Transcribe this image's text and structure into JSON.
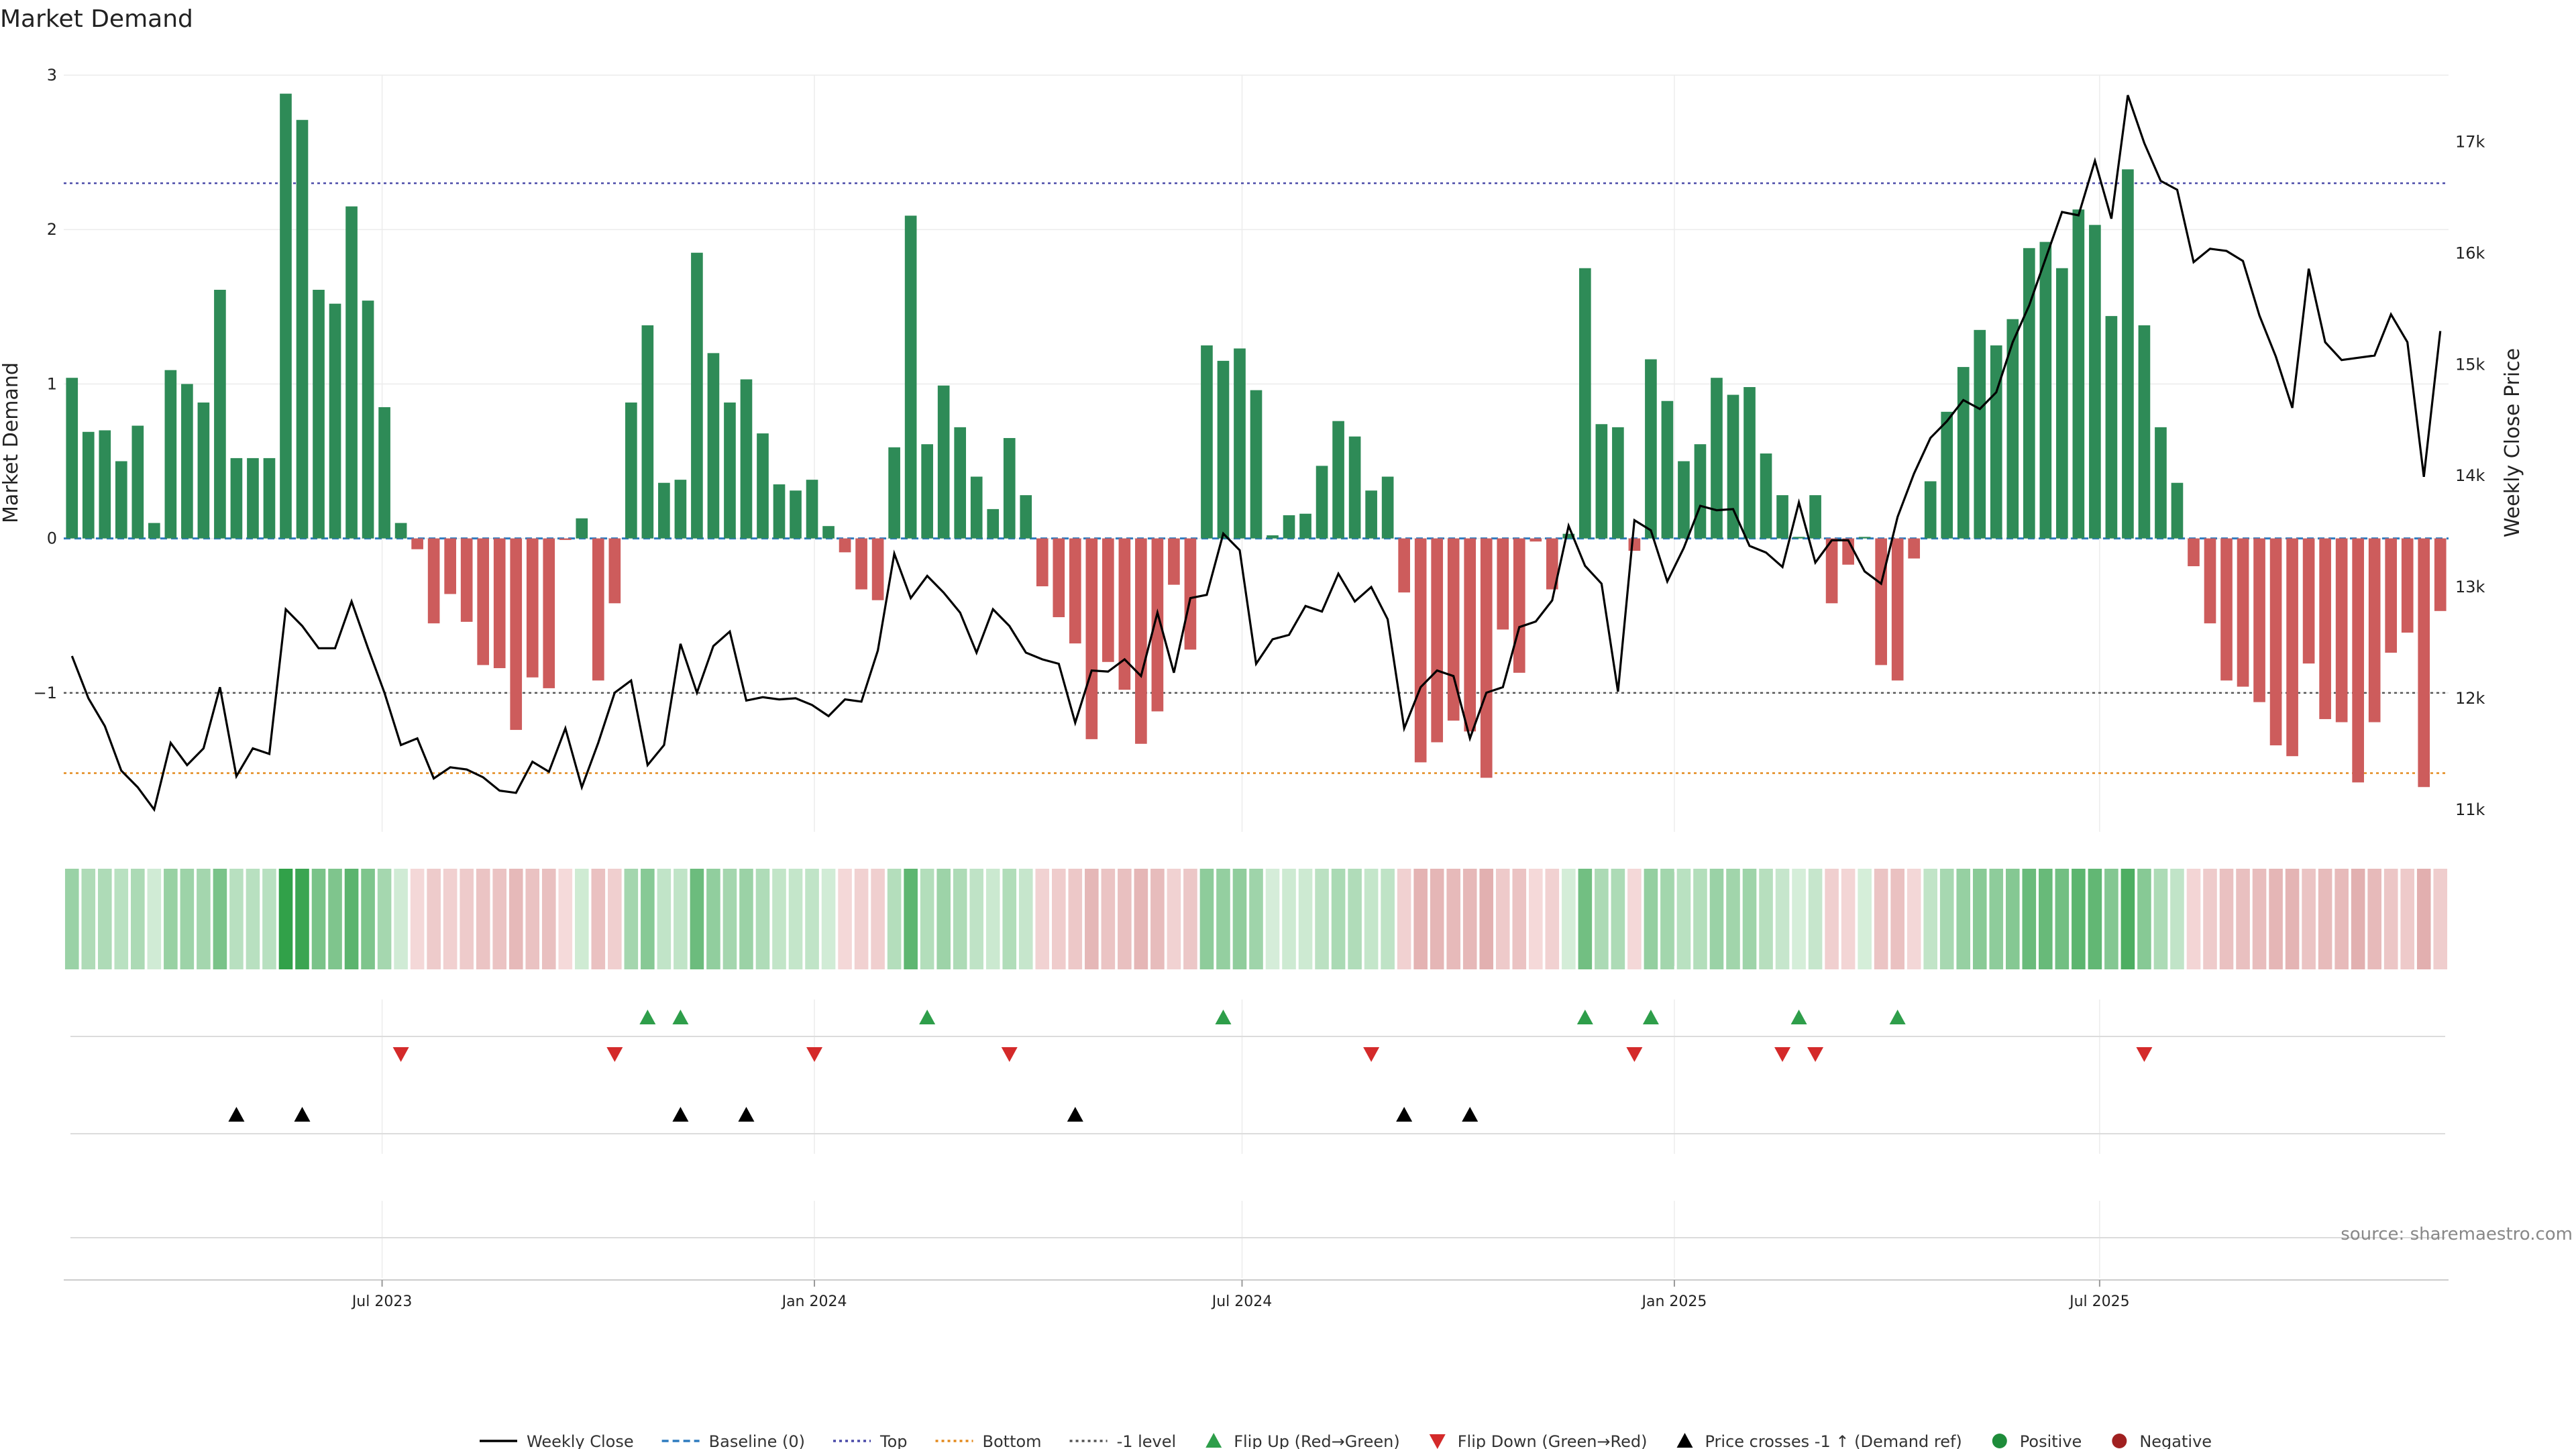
{
  "chart_data": {
    "type": "bar",
    "title": "Market Demand",
    "ylabel_left": "Market Demand",
    "ylabel_right": "Weekly Close Price",
    "source": "source: sharemaestro.com",
    "ylim_left": [
      -1.9,
      3.0
    ],
    "ylim_right": [
      10800,
      17600
    ],
    "yticks_left": [
      {
        "v": 3,
        "label": "3"
      },
      {
        "v": 2,
        "label": "2"
      },
      {
        "v": 1,
        "label": "1"
      },
      {
        "v": 0,
        "label": "0"
      },
      {
        "v": -1,
        "label": "−1"
      }
    ],
    "yticks_right": [
      {
        "v": 17000,
        "label": "17k"
      },
      {
        "v": 16000,
        "label": "16k"
      },
      {
        "v": 15000,
        "label": "15k"
      },
      {
        "v": 14000,
        "label": "14k"
      },
      {
        "v": 13000,
        "label": "13k"
      },
      {
        "v": 12000,
        "label": "12k"
      },
      {
        "v": 11000,
        "label": "11k"
      }
    ],
    "x_start": "2023-02-19",
    "x_step_days": 7,
    "xticks": [
      {
        "date": "2023-07-01",
        "label": "Jul 2023"
      },
      {
        "date": "2024-01-01",
        "label": "Jan 2024"
      },
      {
        "date": "2024-07-01",
        "label": "Jul 2024"
      },
      {
        "date": "2025-01-01",
        "label": "Jan 2025"
      },
      {
        "date": "2025-07-01",
        "label": "Jul 2025"
      }
    ],
    "levels": {
      "top": 2.3,
      "bottom": -1.52,
      "minus_one": -1,
      "baseline": 0
    },
    "demand": [
      1.04,
      0.69,
      0.7,
      0.5,
      0.73,
      0.1,
      1.09,
      1.0,
      0.88,
      1.61,
      0.52,
      0.52,
      0.52,
      2.88,
      2.71,
      1.61,
      1.52,
      2.15,
      1.54,
      0.85,
      0.1,
      -0.07,
      -0.55,
      -0.36,
      -0.54,
      -0.82,
      -0.84,
      -1.24,
      -0.9,
      -0.97,
      -0.01,
      0.13,
      -0.92,
      -0.42,
      0.88,
      1.38,
      0.36,
      0.38,
      1.85,
      1.2,
      0.88,
      1.03,
      0.68,
      0.35,
      0.31,
      0.38,
      0.08,
      -0.09,
      -0.33,
      -0.4,
      0.59,
      2.09,
      0.61,
      0.99,
      0.72,
      0.4,
      0.19,
      0.65,
      0.28,
      -0.31,
      -0.51,
      -0.68,
      -1.3,
      -0.8,
      -0.98,
      -1.33,
      -1.12,
      -0.3,
      -0.72,
      1.25,
      1.15,
      1.23,
      0.96,
      0.02,
      0.15,
      0.16,
      0.47,
      0.76,
      0.66,
      0.31,
      0.4,
      -0.35,
      -1.45,
      -1.32,
      -1.18,
      -1.25,
      -1.55,
      -0.59,
      -0.87,
      -0.02,
      -0.33,
      0.03,
      1.75,
      0.74,
      0.72,
      -0.08,
      1.16,
      0.89,
      0.5,
      0.61,
      1.04,
      0.93,
      0.98,
      0.55,
      0.28,
      0.01,
      0.28,
      -0.42,
      -0.17,
      0.01,
      -0.82,
      -0.92,
      -0.13,
      0.37,
      0.82,
      1.11,
      1.35,
      1.25,
      1.42,
      1.88,
      1.92,
      1.75,
      2.13,
      2.03,
      1.44,
      2.39,
      1.38,
      0.72,
      0.36,
      -0.18,
      -0.55,
      -0.92,
      -0.96,
      -1.06,
      -1.34,
      -1.41,
      -0.81,
      -1.17,
      -1.19,
      -1.58,
      -1.19,
      -0.74,
      -0.61,
      -1.61,
      -0.47
    ],
    "close": [
      12380,
      12000,
      11750,
      11350,
      11200,
      11000,
      11600,
      11400,
      11550,
      12100,
      11300,
      11550,
      11500,
      12800,
      12650,
      12450,
      12450,
      12870,
      12450,
      12050,
      11580,
      11640,
      11280,
      11380,
      11360,
      11290,
      11170,
      11150,
      11430,
      11340,
      11730,
      11200,
      11600,
      12050,
      12160,
      11400,
      11580,
      12490,
      12050,
      12470,
      12600,
      11980,
      12010,
      11990,
      12000,
      11940,
      11840,
      11990,
      11970,
      12430,
      13300,
      12900,
      13100,
      12950,
      12770,
      12410,
      12800,
      12650,
      12410,
      12350,
      12310,
      11780,
      12250,
      12240,
      12350,
      12200,
      12770,
      12230,
      12900,
      12930,
      13480,
      13330,
      12310,
      12530,
      12570,
      12830,
      12780,
      13120,
      12870,
      13000,
      12710,
      11730,
      12100,
      12250,
      12200,
      11640,
      12050,
      12100,
      12640,
      12690,
      12880,
      13550,
      13190,
      13030,
      12060,
      13600,
      13510,
      13050,
      13350,
      13730,
      13690,
      13700,
      13370,
      13310,
      13180,
      13760,
      13220,
      13420,
      13420,
      13140,
      13030,
      13630,
      14020,
      14340,
      14490,
      14680,
      14600,
      14750,
      15200,
      15530,
      15950,
      16370,
      16340,
      16830,
      16310,
      17420,
      16990,
      16650,
      16570,
      15920,
      16040,
      16020,
      15930,
      15440,
      15070,
      14610,
      15860,
      15200,
      15040,
      15060,
      15080,
      15450,
      15200,
      13990,
      15300
    ],
    "flip_up": [
      "2023-10-22",
      "2023-11-05",
      "2024-02-18",
      "2024-06-23",
      "2024-11-24",
      "2024-12-22",
      "2025-02-23",
      "2025-04-06"
    ],
    "flip_down": [
      "2023-07-09",
      "2023-10-08",
      "2024-01-01",
      "2024-03-24",
      "2024-08-25",
      "2024-12-15",
      "2025-02-16",
      "2025-03-02",
      "2025-07-20"
    ],
    "price_cross": [
      "2023-04-30",
      "2023-05-28",
      "2023-11-05",
      "2023-12-03",
      "2024-04-21",
      "2024-09-08",
      "2024-10-06"
    ],
    "legend": [
      {
        "label": "Weekly Close",
        "kind": "line-solid",
        "color": "#000000"
      },
      {
        "label": "Baseline (0)",
        "kind": "line-dash",
        "color": "#2e7bbf"
      },
      {
        "label": "Top",
        "kind": "line-dot",
        "color": "#4a4aa8"
      },
      {
        "label": "Bottom",
        "kind": "line-dot",
        "color": "#e38a1d"
      },
      {
        "label": "-1 level",
        "kind": "line-dot",
        "color": "#555555"
      },
      {
        "label": "Flip Up (Red→Green)",
        "kind": "tri-up",
        "color": "#2e9e4a"
      },
      {
        "label": "Flip Down (Green→Red)",
        "kind": "tri-down",
        "color": "#d42a2a"
      },
      {
        "label": "Price crosses -1 ↑ (Demand ref)",
        "kind": "tri-up",
        "color": "#000000"
      },
      {
        "label": "Positive",
        "kind": "dot",
        "color": "#1e8c3a"
      },
      {
        "label": "Negative",
        "kind": "dot",
        "color": "#a02020"
      }
    ],
    "colors": {
      "positive": "#2e8b57",
      "negative": "#cd5c5c"
    }
  }
}
